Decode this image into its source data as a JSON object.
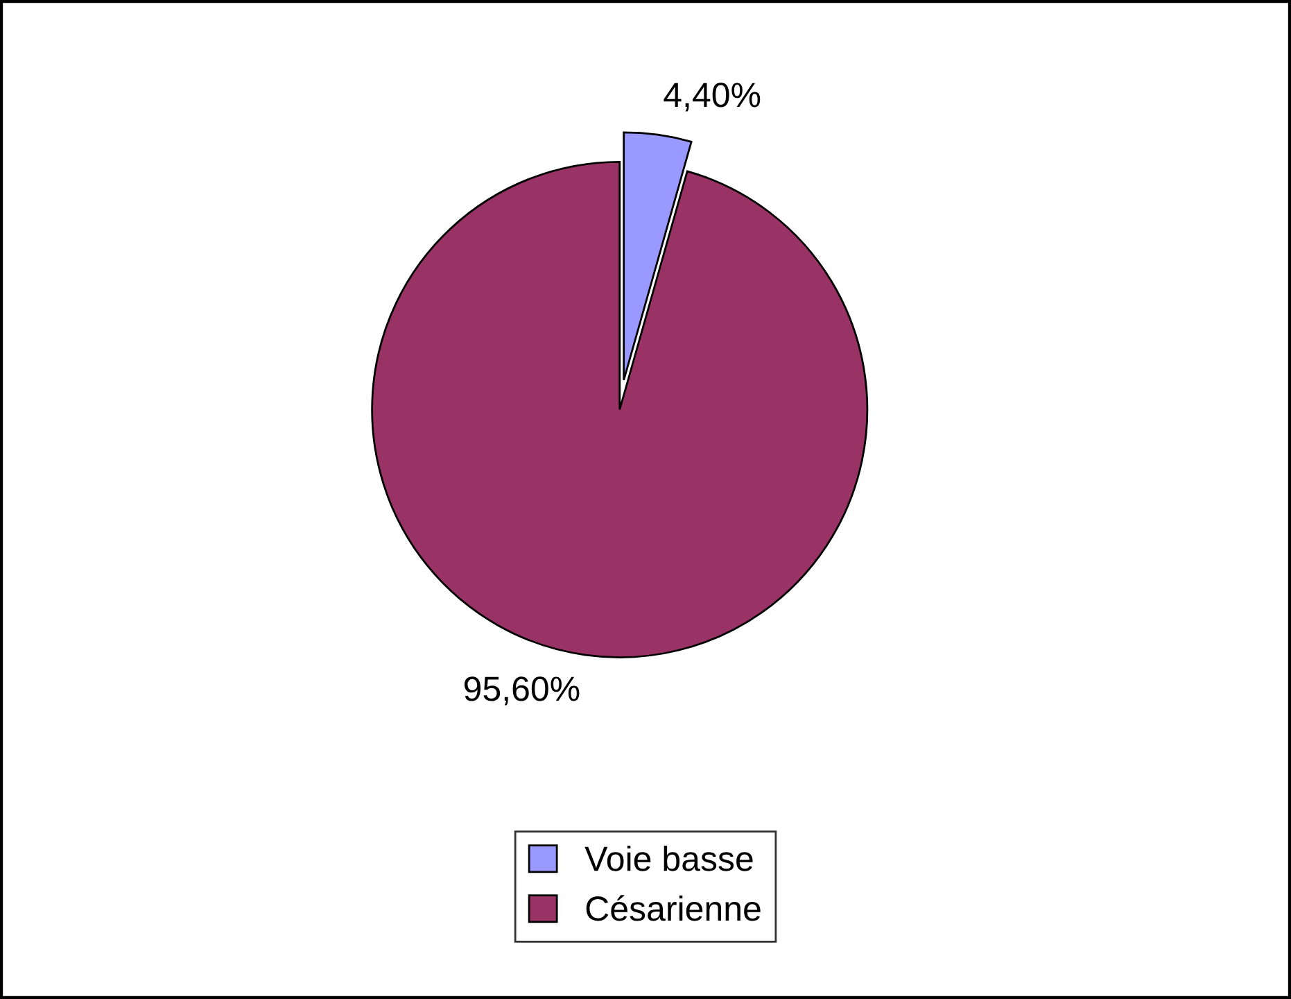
{
  "chart_data": {
    "type": "pie",
    "categories": [
      "Voie basse",
      "Césarienne"
    ],
    "values": [
      4.4,
      95.6
    ],
    "colors": [
      "#9999ff",
      "#993366"
    ],
    "value_labels": [
      "4,40%",
      "95,60%"
    ],
    "legend": "bottom"
  }
}
